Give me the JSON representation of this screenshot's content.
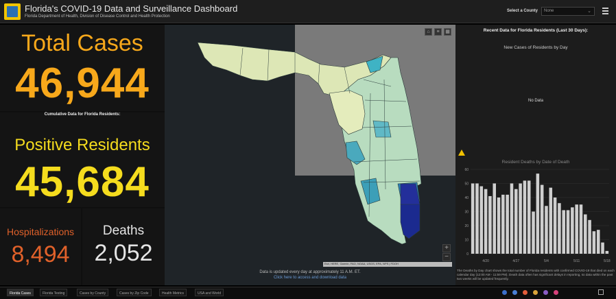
{
  "header": {
    "title": "Florida's COVID-19 Data and Surveillance Dashboard",
    "subtitle": "Florida Department of Health, Division of Disease Control and Health Protection",
    "county_label": "Select a County",
    "county_value": "None"
  },
  "stats": {
    "total_cases_label": "Total Cases",
    "total_cases": "46,944",
    "cumulative_label": "Cumulative Data for Florida Residents:",
    "positive_label": "Positive Residents",
    "positive": "45,684",
    "hosp_label": "Hospitalizations",
    "hosp": "8,494",
    "deaths_label": "Deaths",
    "deaths": "2,052"
  },
  "map": {
    "attribution": "Esri, HERE, Garmin, FAO, NOAA, USGS, EPA, NPS | FDOH",
    "note": "Data is updated every day at approximately 11 A.M. ET.",
    "link": "Click here to access and download data",
    "zoom_in": "+",
    "zoom_out": "−"
  },
  "right_panel": {
    "title": "Recent Data for Florida Residents (Last 30 Days):",
    "cases_title": "New Cases of Residents by Day",
    "no_data": "No Data",
    "deaths_title": "Resident Deaths by Date of Death",
    "disclaimer": "The Deaths by Day chart shows the total number of Florida residents with confirmed COVID-19 that died on each calendar day (12:00 AM - 11:59 PM). Death data often has significant delays in reporting, so data within the past two weeks will be updated frequently."
  },
  "chart_data": {
    "type": "bar",
    "title": "Resident Deaths by Date of Death",
    "x_tick_labels": [
      "4/20",
      "4/27",
      "5/4",
      "5/11",
      "5/18"
    ],
    "y_ticks": [
      0,
      10,
      20,
      30,
      40,
      50,
      60
    ],
    "ylim": [
      0,
      60
    ],
    "values": [
      50,
      50,
      48,
      46,
      41,
      50,
      40,
      42,
      42,
      50,
      46,
      50,
      52,
      52,
      30,
      57,
      49,
      34,
      47,
      40,
      36,
      31,
      31,
      33,
      35,
      35,
      28,
      24,
      16,
      17,
      8,
      2
    ],
    "color": "#cfcfcf"
  },
  "tabs": [
    "Florida Cases",
    "Florida Testing",
    "Cases by County",
    "Cases by Zip Code",
    "Health Metrics",
    "USA and World"
  ],
  "social_colors": [
    "#3b6ec9",
    "#4a7fd4",
    "#e25d3b",
    "#d9a33a",
    "#8a5cc4",
    "#d6407a"
  ]
}
